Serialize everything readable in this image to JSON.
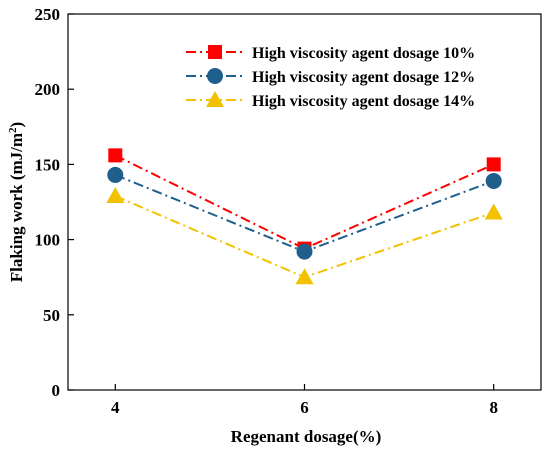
{
  "chart_data": {
    "type": "line",
    "title": "",
    "xlabel": "Regenant dosage(%)",
    "ylabel_main": "Flaking work (mJ/m",
    "ylabel_sup": "2",
    "ylabel_close": ")",
    "x": [
      4,
      6,
      8
    ],
    "xlim": [
      3.5,
      8.5
    ],
    "ylim": [
      0,
      250
    ],
    "xticks": [
      "4",
      "6",
      "8"
    ],
    "yticks": [
      "0",
      "50",
      "100",
      "150",
      "200",
      "250"
    ],
    "ytick_values": [
      0,
      50,
      100,
      150,
      200,
      250
    ],
    "grid": false,
    "legend_position": "top-right",
    "series": [
      {
        "name": "High viscosity agent dosage 10%",
        "values": [
          156,
          94,
          150
        ],
        "color": "#ff0000",
        "marker": "square"
      },
      {
        "name": "High viscosity agent dosage 12%",
        "values": [
          143,
          92,
          139
        ],
        "color": "#1f5f8b",
        "marker": "circle"
      },
      {
        "name": "High viscosity agent dosage 14%",
        "values": [
          129,
          75,
          118
        ],
        "color": "#f2c200",
        "marker": "triangle"
      }
    ]
  }
}
